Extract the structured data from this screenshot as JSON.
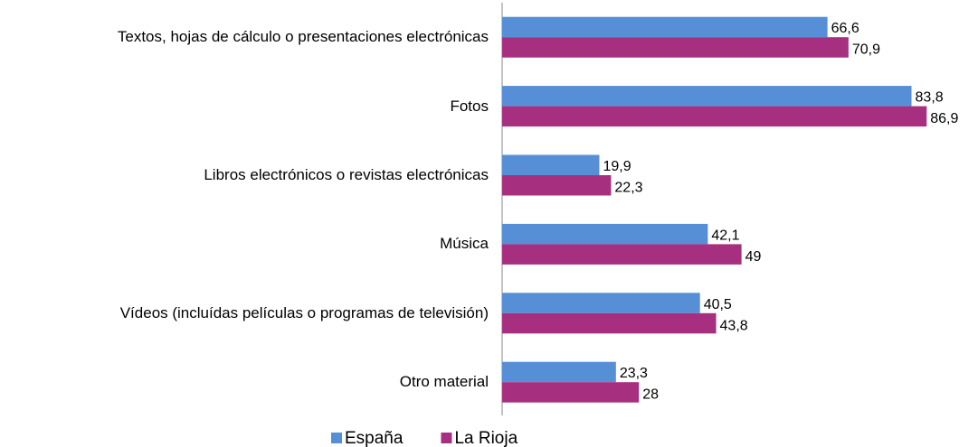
{
  "chart_data": {
    "type": "bar",
    "orientation": "horizontal",
    "categories": [
      "Textos, hojas de cálculo o presentaciones electrónicas",
      "Fotos",
      "Libros electrónicos o revistas electrónicas",
      "Música",
      "Vídeos (incluídas películas o programas de televisión)",
      "Otro material"
    ],
    "series": [
      {
        "name": "España",
        "color": "#568fd6",
        "values": [
          66.6,
          83.8,
          19.9,
          42.1,
          40.5,
          23.3
        ],
        "value_labels": [
          "66,6",
          "83,8",
          "19,9",
          "42,1",
          "40,5",
          "23,3"
        ]
      },
      {
        "name": "La Rioja",
        "color": "#a62f80",
        "values": [
          70.9,
          86.9,
          22.3,
          49,
          43.8,
          28
        ],
        "value_labels": [
          "70,9",
          "86,9",
          "22,3",
          "49",
          "43,8",
          "28"
        ]
      }
    ],
    "legend": "bottom"
  }
}
